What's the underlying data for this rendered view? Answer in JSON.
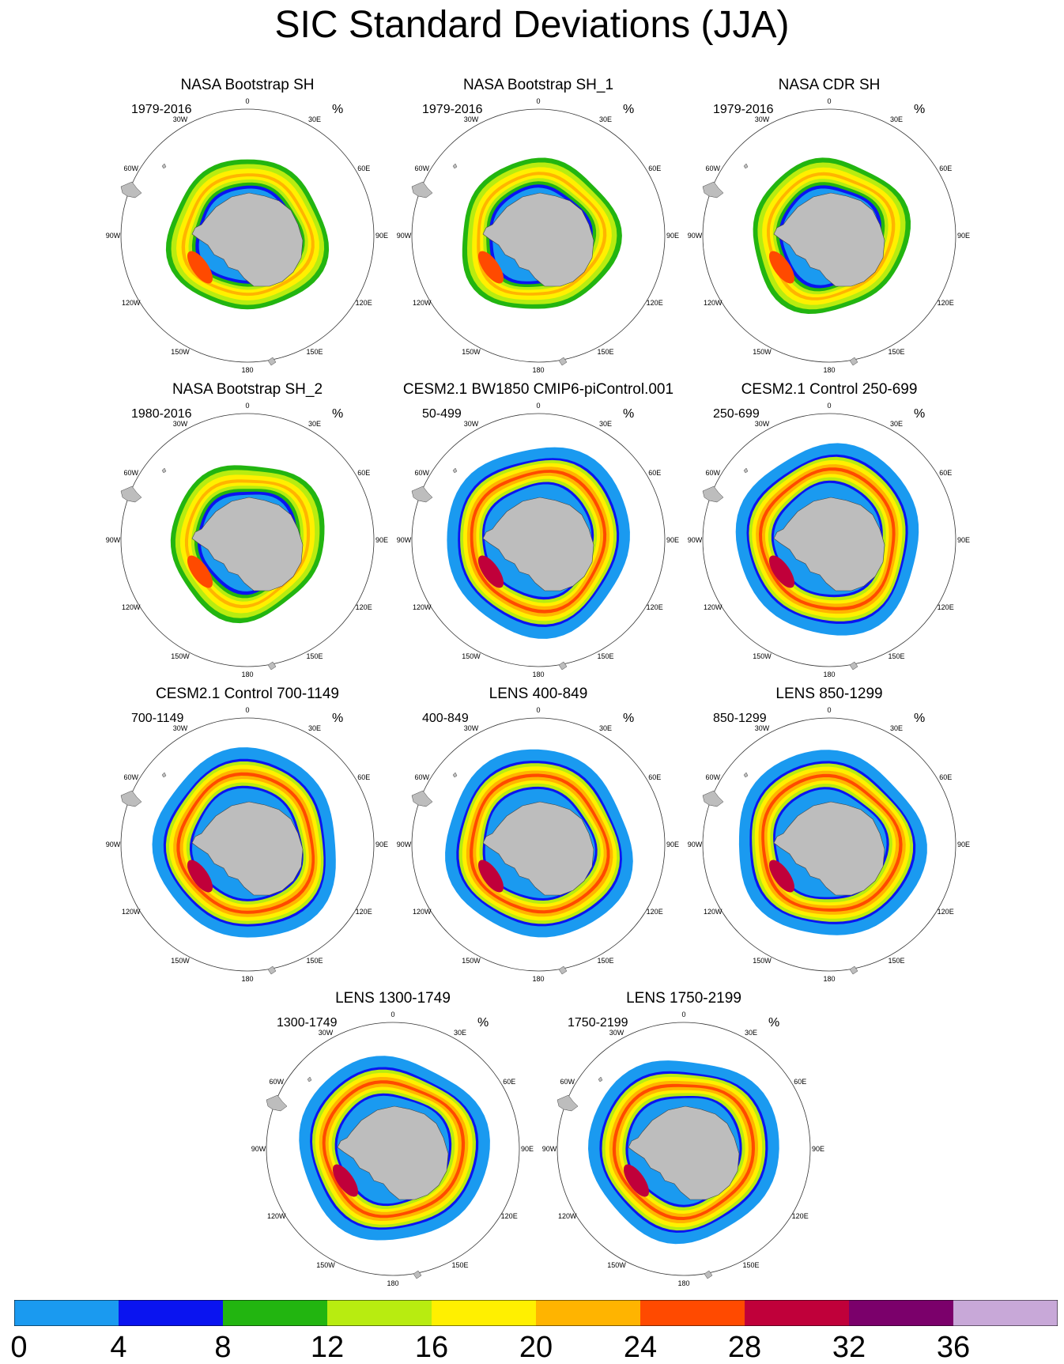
{
  "title": "SIC Standard Deviations (JJA)",
  "unit_label": "%",
  "panels": [
    {
      "title": "NASA Bootstrap SH",
      "period": "1979-2016",
      "kind": "obs"
    },
    {
      "title": "NASA Bootstrap SH_1",
      "period": "1979-2016",
      "kind": "obs"
    },
    {
      "title": "NASA CDR SH",
      "period": "1979-2016",
      "kind": "obs"
    },
    {
      "title": "NASA Bootstrap SH_2",
      "period": "1980-2016",
      "kind": "obs"
    },
    {
      "title": "CESM2.1 BW1850 CMIP6-piControl.001",
      "period": "50-499",
      "kind": "model"
    },
    {
      "title": "CESM2.1 Control 250-699",
      "period": "250-699",
      "kind": "model"
    },
    {
      "title": "CESM2.1 Control 700-1149",
      "period": "700-1149",
      "kind": "model"
    },
    {
      "title": "LENS 400-849",
      "period": "400-849",
      "kind": "model"
    },
    {
      "title": "LENS 850-1299",
      "period": "850-1299",
      "kind": "model"
    },
    {
      "title": "LENS 1300-1749",
      "period": "1300-1749",
      "kind": "model"
    },
    {
      "title": "LENS 1750-2199",
      "period": "1750-2199",
      "kind": "model"
    }
  ],
  "longitude_ticks": [
    "0",
    "30E",
    "60E",
    "90E",
    "120E",
    "150E",
    "180",
    "150W",
    "120W",
    "90W",
    "60W",
    "30W"
  ],
  "colorbar": {
    "colors": [
      "#1a9af0",
      "#0a14f0",
      "#22b510",
      "#b8ec10",
      "#fff000",
      "#ffb400",
      "#ff4a00",
      "#c0003a",
      "#7b006b",
      "#c8a8d8"
    ],
    "labels": [
      "0",
      "4",
      "8",
      "12",
      "16",
      "20",
      "24",
      "28",
      "32",
      "36"
    ]
  }
}
